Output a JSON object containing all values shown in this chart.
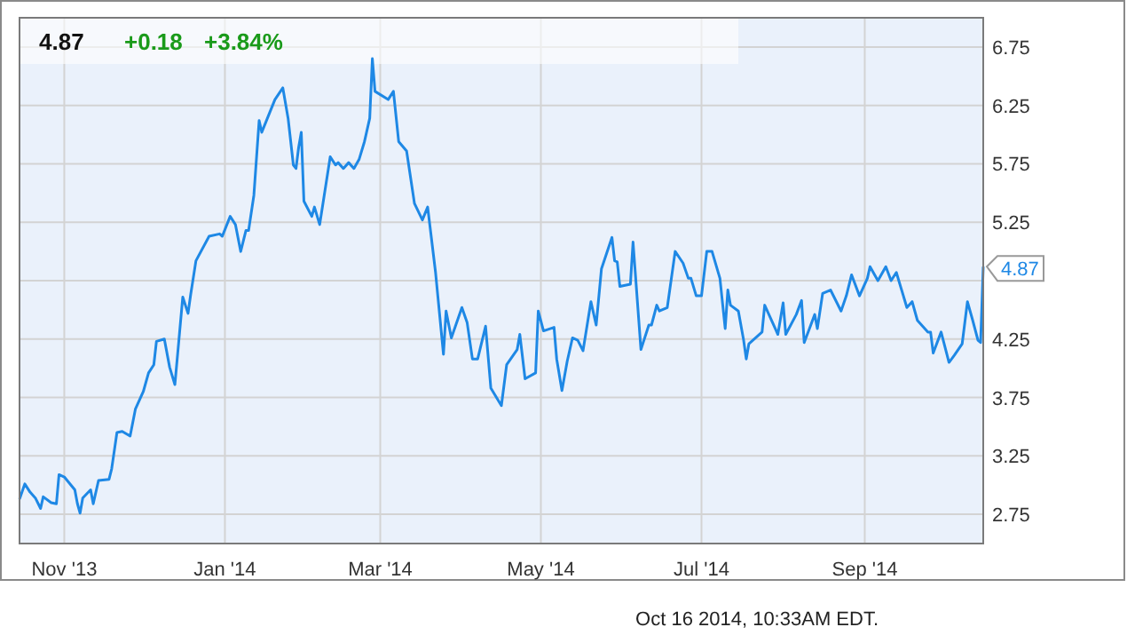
{
  "chart_data": {
    "type": "line",
    "title": "4.87",
    "annotations": [
      "+0.18",
      "+3.84%",
      "Oct 16 2014, 10:33AM EDT.",
      {
        "text": "4.87",
        "x": "2014-10-16",
        "y": 4.87
      }
    ],
    "x": [
      "2013-10-15",
      "2013-10-17",
      "2013-10-19",
      "2013-10-21",
      "2013-10-23",
      "2013-10-24",
      "2013-10-27",
      "2013-10-29",
      "2013-10-30",
      "2013-11-01",
      "2013-11-05",
      "2013-11-06",
      "2013-11-07",
      "2013-11-08",
      "2013-11-11",
      "2013-11-12",
      "2013-11-14",
      "2013-11-18",
      "2013-11-19",
      "2013-11-21",
      "2013-11-23",
      "2013-11-26",
      "2013-11-28",
      "2013-12-01",
      "2013-12-03",
      "2013-12-05",
      "2013-12-06",
      "2013-12-09",
      "2013-12-11",
      "2013-12-13",
      "2013-12-16",
      "2013-12-18",
      "2013-12-19",
      "2013-12-21",
      "2013-12-26",
      "2013-12-30",
      "2013-12-31",
      "2014-01-03",
      "2014-01-05",
      "2014-01-07",
      "2014-01-09",
      "2014-01-10",
      "2014-01-12",
      "2014-01-14",
      "2014-01-15",
      "2014-01-20",
      "2014-01-23",
      "2014-01-25",
      "2014-01-27",
      "2014-01-28",
      "2014-01-29",
      "2014-01-30",
      "2014-01-31",
      "2014-02-03",
      "2014-02-04",
      "2014-02-06",
      "2014-02-10",
      "2014-02-12",
      "2014-02-13",
      "2014-02-15",
      "2014-02-17",
      "2014-02-19",
      "2014-02-21",
      "2014-02-23",
      "2014-02-25",
      "2014-02-26",
      "2014-02-27",
      "2014-03-04",
      "2014-03-06",
      "2014-03-08",
      "2014-03-11",
      "2014-03-14",
      "2014-03-17",
      "2014-03-19",
      "2014-03-22",
      "2014-03-25",
      "2014-03-26",
      "2014-03-28",
      "2014-04-01",
      "2014-04-03",
      "2014-04-05",
      "2014-04-07",
      "2014-04-10",
      "2014-04-12",
      "2014-04-16",
      "2014-04-18",
      "2014-04-22",
      "2014-04-23",
      "2014-04-25",
      "2014-04-29",
      "2014-04-30",
      "2014-05-02",
      "2014-05-06",
      "2014-05-07",
      "2014-05-09",
      "2014-05-11",
      "2014-05-13",
      "2014-05-15",
      "2014-05-17",
      "2014-05-20",
      "2014-05-22",
      "2014-05-24",
      "2014-05-28",
      "2014-05-29",
      "2014-05-30",
      "2014-05-31",
      "2014-06-04",
      "2014-06-05",
      "2014-06-08",
      "2014-06-11",
      "2014-06-12",
      "2014-06-14",
      "2014-06-15",
      "2014-06-18",
      "2014-06-21",
      "2014-06-24",
      "2014-06-26",
      "2014-06-27",
      "2014-06-29",
      "2014-07-01",
      "2014-07-03",
      "2014-07-05",
      "2014-07-08",
      "2014-07-10",
      "2014-07-11",
      "2014-07-12",
      "2014-07-15",
      "2014-07-17",
      "2014-07-18",
      "2014-07-19",
      "2014-07-24",
      "2014-07-25",
      "2014-07-29",
      "2014-07-30",
      "2014-08-01",
      "2014-08-02",
      "2014-08-06",
      "2014-08-08",
      "2014-08-09",
      "2014-08-11",
      "2014-08-13",
      "2014-08-14",
      "2014-08-16",
      "2014-08-19",
      "2014-08-23",
      "2014-08-25",
      "2014-08-27",
      "2014-08-30",
      "2014-09-02",
      "2014-09-03",
      "2014-09-06",
      "2014-09-09",
      "2014-09-11",
      "2014-09-13",
      "2014-09-17",
      "2014-09-19",
      "2014-09-21",
      "2014-09-25",
      "2014-09-26",
      "2014-09-27",
      "2014-09-30",
      "2014-10-03",
      "2014-10-05",
      "2014-10-08",
      "2014-10-10",
      "2014-10-12",
      "2014-10-14",
      "2014-10-15",
      "2014-10-16"
    ],
    "series": [
      {
        "color": "#1e88e5",
        "values": [
          2.88,
          3.01,
          2.94,
          2.89,
          2.8,
          2.9,
          2.85,
          2.84,
          3.09,
          3.07,
          2.96,
          2.84,
          2.76,
          2.89,
          2.96,
          2.84,
          3.04,
          3.05,
          3.14,
          3.45,
          3.46,
          3.42,
          3.65,
          3.8,
          3.96,
          4.03,
          4.23,
          4.25,
          4.01,
          3.86,
          4.61,
          4.47,
          4.63,
          4.92,
          5.13,
          5.15,
          5.13,
          5.3,
          5.23,
          5.0,
          5.18,
          5.18,
          5.48,
          6.12,
          6.02,
          6.3,
          6.4,
          6.14,
          5.74,
          5.71,
          5.89,
          6.02,
          5.43,
          5.3,
          5.38,
          5.23,
          5.81,
          5.74,
          5.76,
          5.71,
          5.76,
          5.71,
          5.79,
          5.94,
          6.14,
          6.65,
          6.37,
          6.3,
          6.37,
          5.94,
          5.86,
          5.41,
          5.27,
          5.38,
          4.82,
          4.12,
          4.49,
          4.26,
          4.52,
          4.39,
          4.08,
          4.08,
          4.36,
          3.83,
          3.68,
          4.03,
          4.16,
          4.29,
          3.91,
          3.96,
          4.49,
          4.32,
          4.35,
          4.08,
          3.81,
          4.06,
          4.26,
          4.24,
          4.15,
          4.57,
          4.37,
          4.85,
          5.12,
          4.92,
          4.91,
          4.7,
          4.72,
          5.08,
          4.16,
          4.37,
          4.37,
          4.54,
          4.49,
          4.52,
          5.0,
          4.9,
          4.77,
          4.77,
          4.62,
          4.62,
          5.0,
          5.0,
          4.77,
          4.34,
          4.67,
          4.54,
          4.49,
          4.24,
          4.08,
          4.21,
          4.31,
          4.54,
          4.34,
          4.29,
          4.56,
          4.29,
          4.46,
          4.58,
          4.22,
          4.34,
          4.46,
          4.34,
          4.64,
          4.67,
          4.49,
          4.62,
          4.8,
          4.62,
          4.77,
          4.87,
          4.75,
          4.87,
          4.75,
          4.82,
          4.52,
          4.57,
          4.41,
          4.31,
          4.31,
          4.13,
          4.31,
          4.05,
          4.11,
          4.21,
          4.57,
          4.41,
          4.24,
          4.22,
          4.87
        ]
      }
    ],
    "xlim": [
      "2013-10-15",
      "2014-10-16"
    ],
    "xticks": [
      {
        "value": "2013-11-01",
        "label": "Nov '13"
      },
      {
        "value": "2014-01-01",
        "label": "Jan '14"
      },
      {
        "value": "2014-03-01",
        "label": "Mar '14"
      },
      {
        "value": "2014-05-01",
        "label": "May '14"
      },
      {
        "value": "2014-07-01",
        "label": "Jul '14"
      },
      {
        "value": "2014-09-01",
        "label": "Sep '14"
      }
    ],
    "ylim": [
      2.5,
      7.0
    ],
    "yticks": [
      2.75,
      3.25,
      3.75,
      4.25,
      {
        "value": 4.75,
        "label": null
      },
      5.25,
      5.75,
      6.25,
      6.75
    ],
    "grid": true,
    "marker": "none",
    "line_style": "solid"
  }
}
